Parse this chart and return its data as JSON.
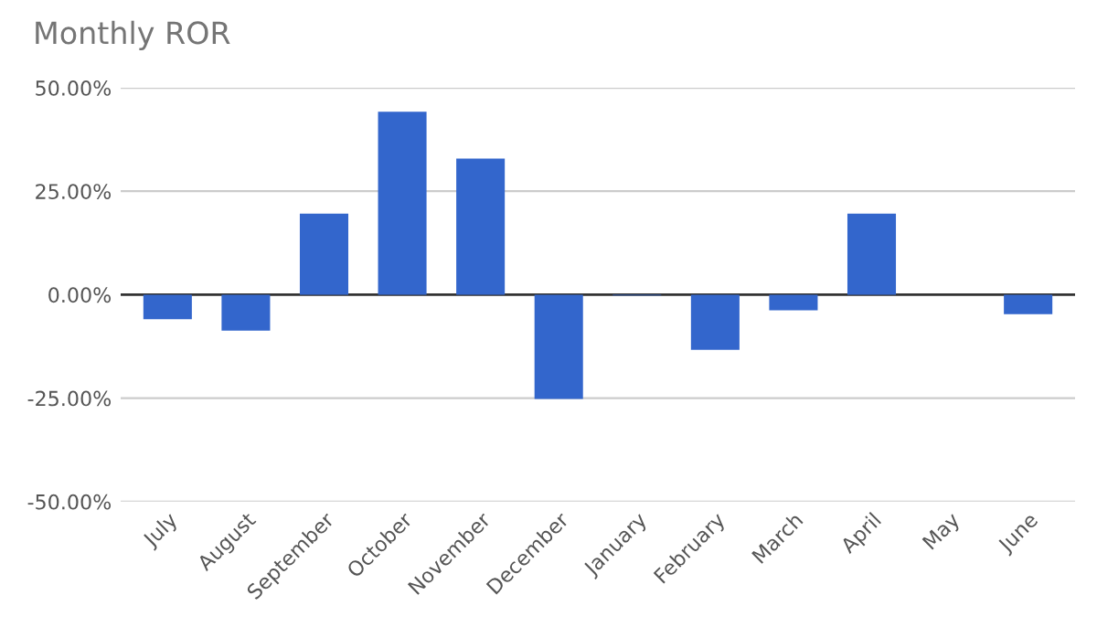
{
  "chart_data": {
    "type": "bar",
    "title": "Monthly ROR",
    "categories": [
      "July",
      "August",
      "September",
      "October",
      "November",
      "December",
      "January",
      "February",
      "March",
      "April",
      "May",
      "June"
    ],
    "values": [
      -5.9,
      -8.7,
      19.6,
      44.2,
      32.9,
      -25.2,
      -0.2,
      -13.3,
      -3.8,
      19.6,
      0,
      -4.7
    ],
    "color": "#3366cc",
    "ylim": [
      -50,
      50
    ],
    "yticks": [
      {
        "value": -50,
        "label": "-50.00%"
      },
      {
        "value": -25,
        "label": "-25.00%"
      },
      {
        "value": 0,
        "label": "0.00%"
      },
      {
        "value": 25,
        "label": "25.00%"
      },
      {
        "value": 50,
        "label": "50.00%"
      }
    ],
    "ref_lines": [
      {
        "axis": "y",
        "value": 0,
        "color": "#333333"
      }
    ],
    "grid": "y"
  }
}
